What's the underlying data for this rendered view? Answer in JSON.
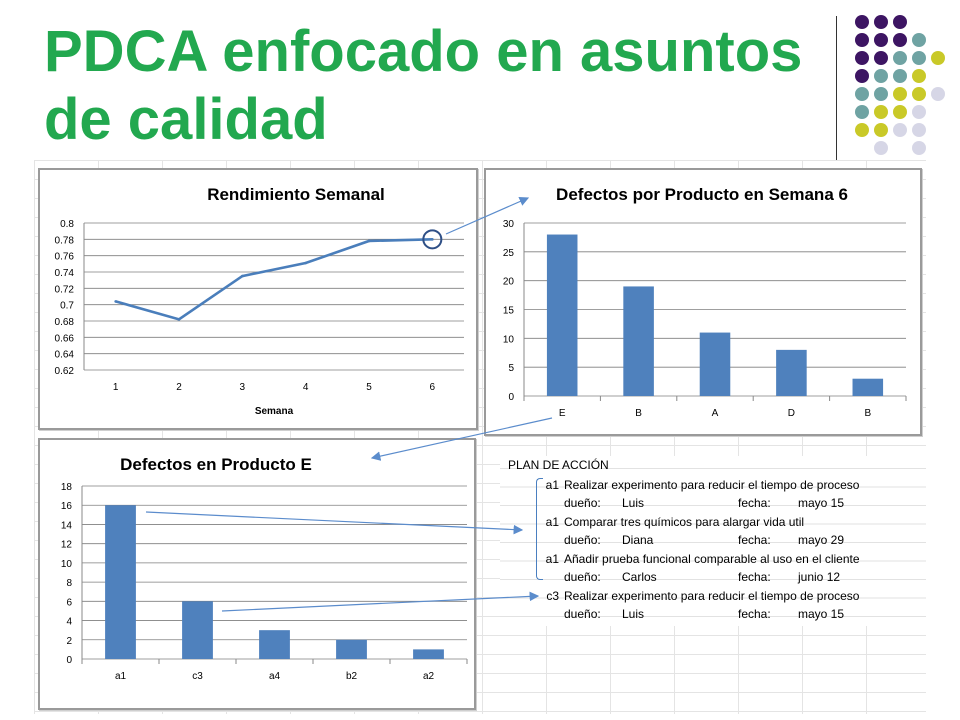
{
  "slide": {
    "title": "PDCA enfocado en asuntos de calidad",
    "title_color": "#22a84f",
    "decoration_dot_colors": [
      "#3d1563",
      "#6fa3a3",
      "#c9c928",
      "#d6d6e6"
    ]
  },
  "chart_data": [
    {
      "type": "line",
      "title": "Rendimiento Semanal",
      "xlabel": "Semana",
      "ylabel": "",
      "x": [
        "1",
        "2",
        "3",
        "4",
        "5",
        "6"
      ],
      "series": [
        {
          "values": [
            0.704,
            0.682,
            0.735,
            0.751,
            0.778,
            0.78
          ],
          "color": "#4a7ebb"
        }
      ],
      "ylim": [
        0.62,
        0.8
      ],
      "yticks": [
        "0.8",
        "0.78",
        "0.76",
        "0.74",
        "0.72",
        "0.7",
        "0.68",
        "0.66",
        "0.64",
        "0.62"
      ],
      "grid": true,
      "highlight_point": "6"
    },
    {
      "type": "bar",
      "title": "Defectos por Producto en Semana 6",
      "categories": [
        "E",
        "B",
        "A",
        "D",
        "B"
      ],
      "values": [
        28,
        19,
        11,
        8,
        3
      ],
      "ylim": [
        0,
        30
      ],
      "yticks": [
        "30",
        "25",
        "20",
        "15",
        "10",
        "5",
        "0"
      ],
      "grid": true,
      "color": "#4f81bd"
    },
    {
      "type": "bar",
      "title": "Defectos en Producto E",
      "categories": [
        "a1",
        "c3",
        "a4",
        "b2",
        "a2"
      ],
      "values": [
        16,
        6,
        3,
        2,
        1
      ],
      "ylim": [
        0,
        18
      ],
      "yticks": [
        "18",
        "16",
        "14",
        "12",
        "10",
        "8",
        "6",
        "4",
        "2",
        "0"
      ],
      "grid": true,
      "color": "#4f81bd"
    }
  ],
  "action_plan": {
    "title": "PLAN DE ACCIÓN",
    "owner_label": "dueño:",
    "date_label": "fecha:",
    "items": [
      {
        "code": "a1",
        "task": "Realizar experimento para reducir el tiempo de proceso",
        "owner": "Luis",
        "date": "mayo 15"
      },
      {
        "code": "a1",
        "task": "Comparar tres químicos para alargar vida util",
        "owner": "Diana",
        "date": "mayo 29"
      },
      {
        "code": "a1",
        "task": "Añadir prueba funcional comparable al uso en el cliente",
        "owner": "Carlos",
        "date": "junio 12"
      },
      {
        "code": "c3",
        "task": "Realizar experimento para reducir el tiempo de proceso",
        "owner": "Luis",
        "date": "mayo 15"
      }
    ]
  },
  "colors": {
    "arrow": "#5b8ccc",
    "gridline": "#7f7f7f",
    "chart_border": "#9a9a9a"
  }
}
